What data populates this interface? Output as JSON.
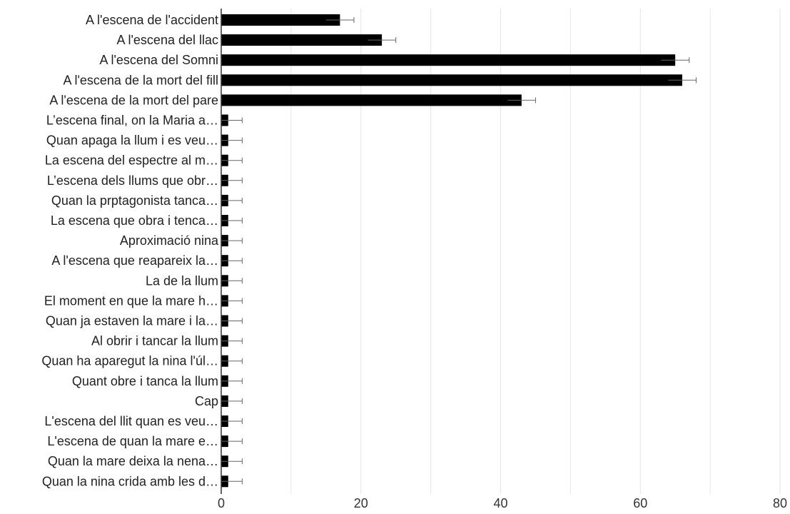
{
  "chart_data": {
    "type": "bar",
    "orientation": "horizontal",
    "categories": [
      "A l'escena de l'accident",
      "A l'escena del llac",
      "A l'escena del Somni",
      "A l'escena de la mort del fill",
      "A l'escena de la mort del pare",
      "L’escena final, on la Maria a…",
      "Quan apaga la llum i es veu…",
      "La escena del espectre al m…",
      "L’escena dels llums que obr…",
      "Quan la prptagonista tanca…",
      "La escena que obra i tenca…",
      "Aproximació nina",
      "A l'escena que reapareix la…",
      "La de la llum",
      "El moment en que la mare h…",
      "Quan ja estaven la mare i la…",
      "Al obrir i tancar la llum",
      "Quan ha aparegut la nina l'úl…",
      "Quant obre i tanca la llum",
      "Cap",
      "L'escena del llit quan es veu…",
      "L'escena de quan la mare e…",
      "Quan la mare deixa la nena…",
      "Quan la nina crida amb les d…"
    ],
    "values": [
      17,
      23,
      65,
      66,
      43,
      1,
      1,
      1,
      1,
      1,
      1,
      1,
      1,
      1,
      1,
      1,
      1,
      1,
      1,
      1,
      1,
      1,
      1,
      1
    ],
    "errors": [
      2,
      2,
      2,
      2,
      2,
      2,
      2,
      2,
      2,
      2,
      2,
      2,
      2,
      2,
      2,
      2,
      2,
      2,
      2,
      2,
      2,
      2,
      2,
      2
    ],
    "xlim": [
      0,
      80
    ],
    "xticks": [
      0,
      20,
      40,
      60,
      80
    ],
    "xlabel": "",
    "ylabel": "",
    "title": "",
    "grid": true,
    "bar_color": "#000000",
    "error_color": "#666666",
    "grid_color": "#e6e6e6"
  }
}
